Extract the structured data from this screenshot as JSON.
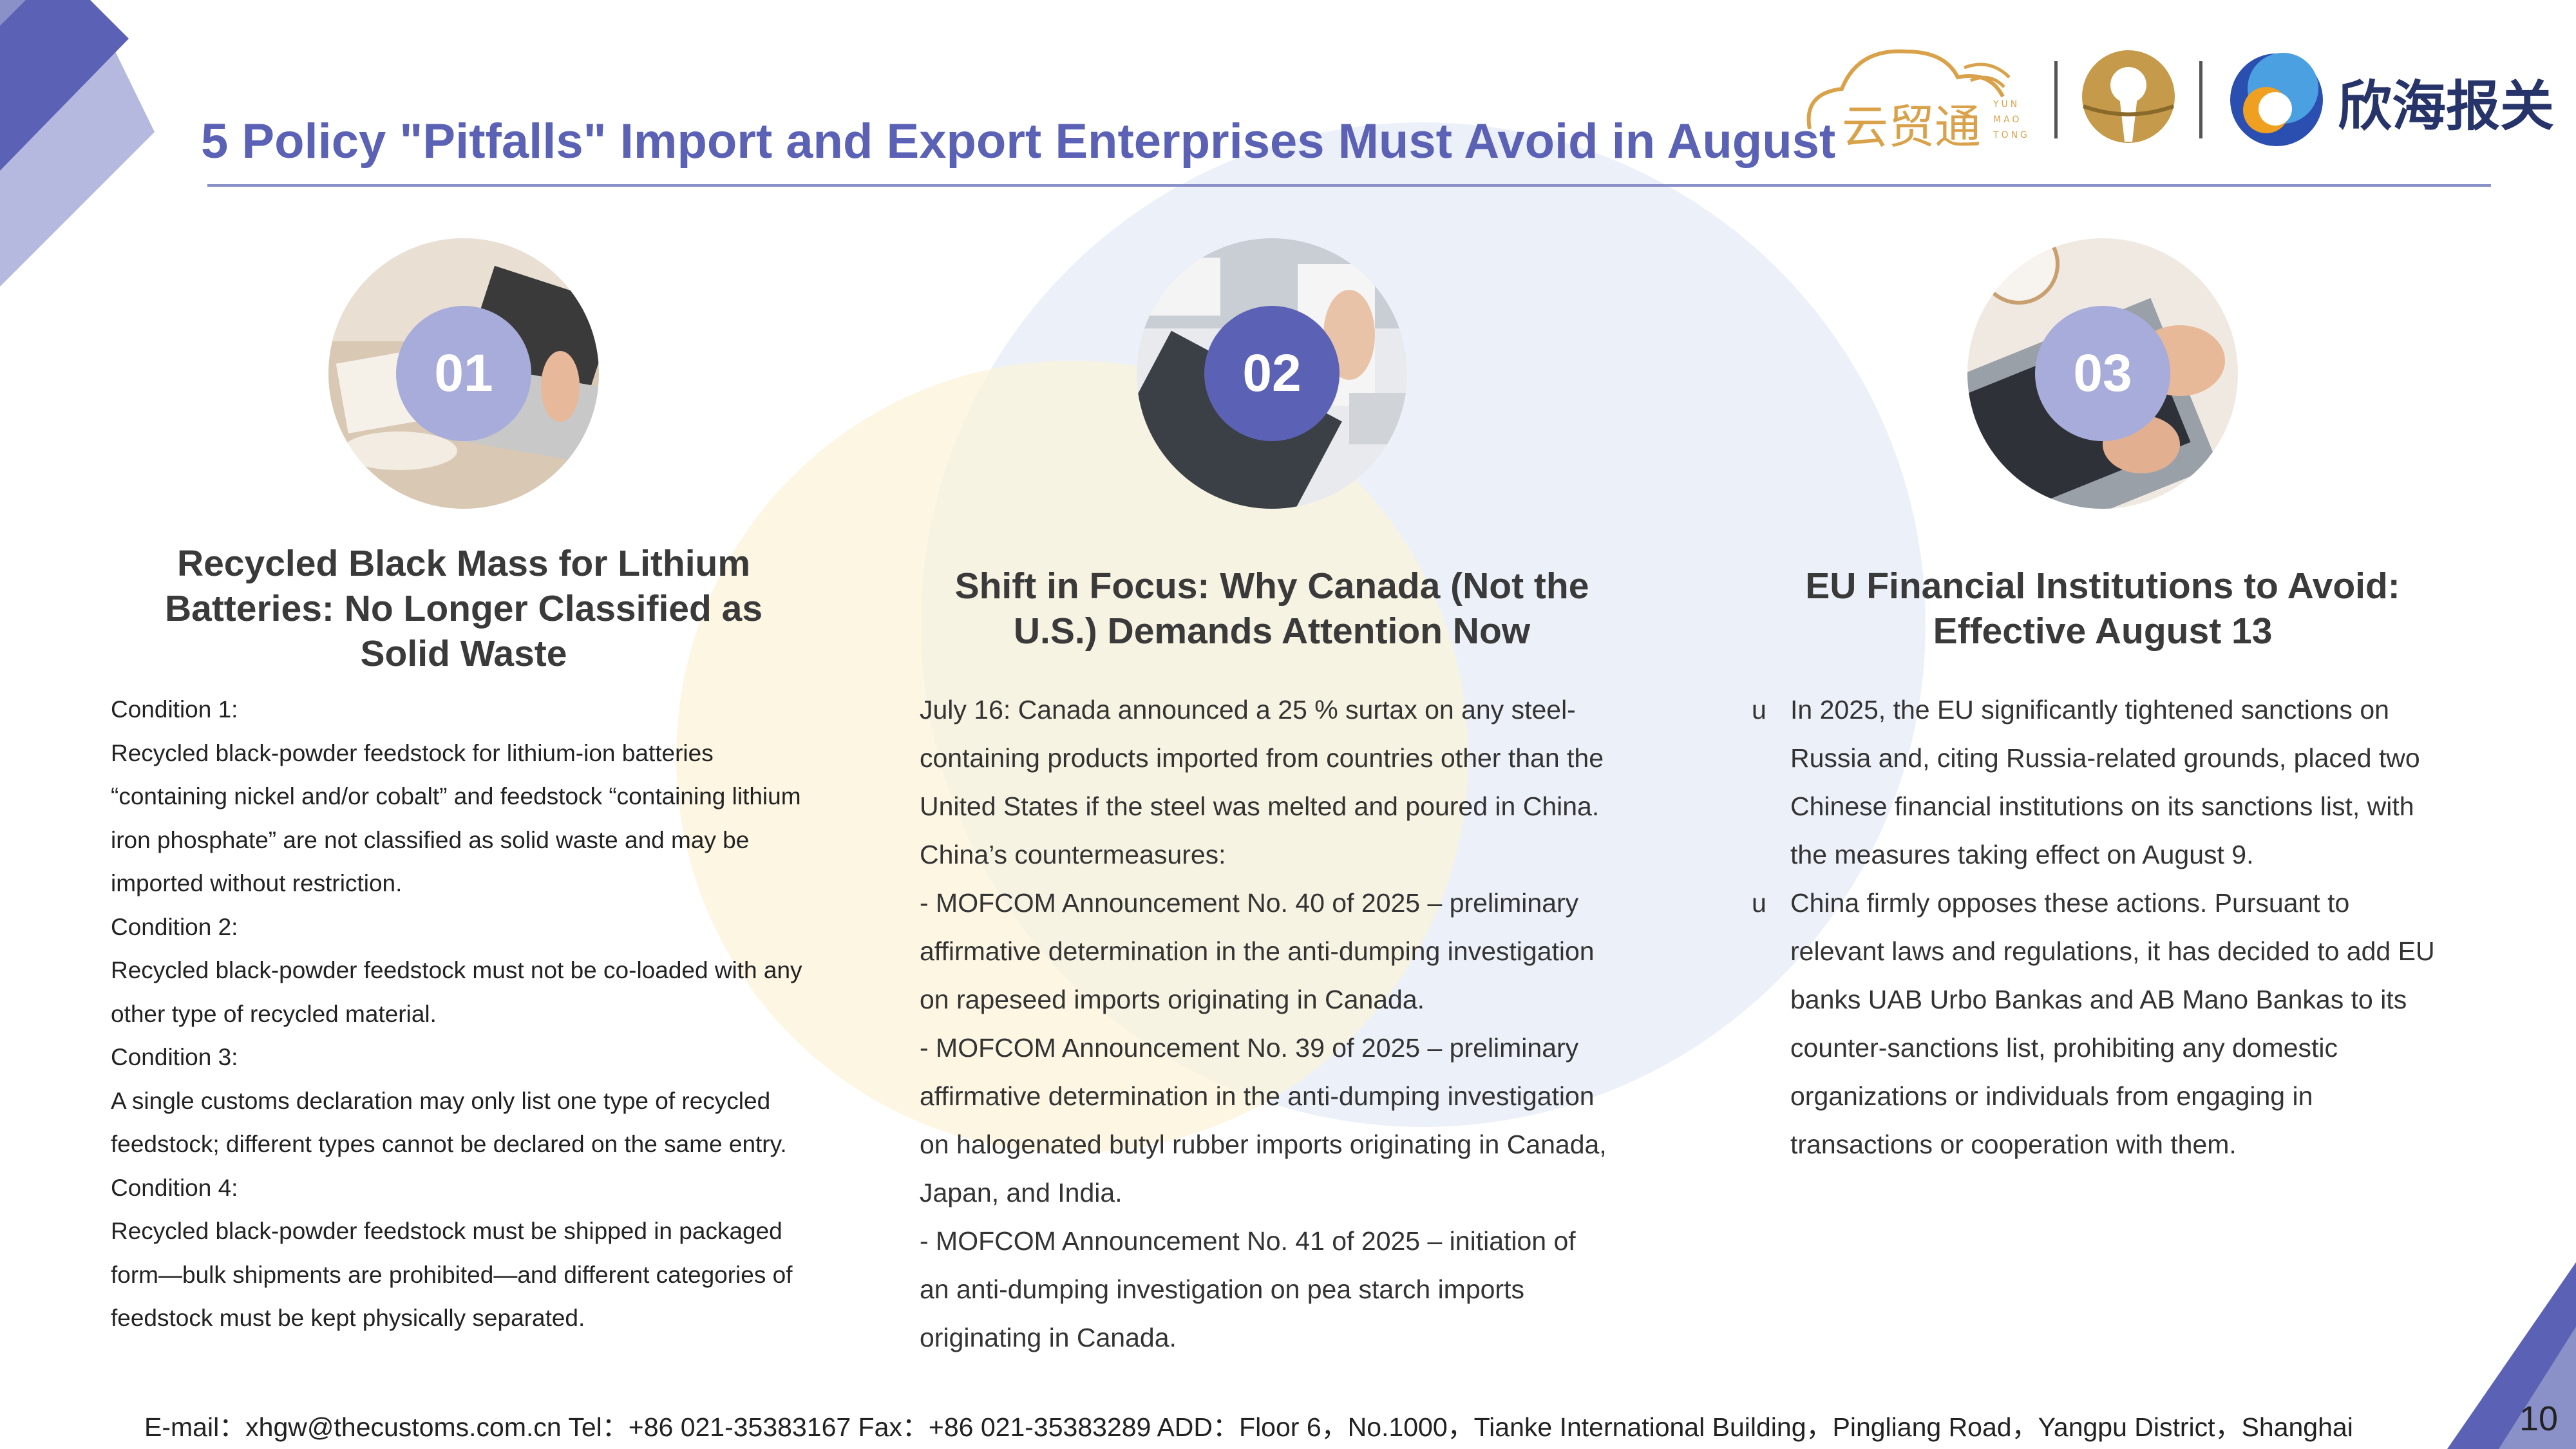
{
  "header": {
    "title": "5 Policy \"Pitfalls\" Import and Export Enterprises Must Avoid in August",
    "logos": {
      "yun_text": "云贸通",
      "yun_small": [
        "YUN",
        "MAO",
        "TONG"
      ],
      "brand_text": "欣海报关"
    }
  },
  "sections": [
    {
      "number": "01",
      "heading": [
        "Recycled Black Mass for Lithium",
        "Batteries: No Longer Classified as",
        "Solid Waste"
      ],
      "lines": [
        "Condition 1:",
        "Recycled black-powder feedstock for lithium-ion batteries",
        "“containing nickel and/or cobalt” and feedstock “containing lithium",
        "iron phosphate” are not classified as solid waste and may be",
        "imported without restriction.",
        "Condition 2:",
        "Recycled black-powder feedstock must not be co-loaded with any",
        "other type of recycled material.",
        "Condition 3:",
        "A single customs declaration may only list one type of recycled",
        "feedstock; different types cannot be declared on the same entry.",
        "Condition 4:",
        "Recycled black-powder feedstock must be shipped in packaged",
        "form—bulk shipments are prohibited—and different categories of",
        "feedstock must be kept physically separated."
      ]
    },
    {
      "number": "02",
      "heading": [
        "Shift in Focus: Why Canada (Not the",
        "U.S.) Demands Attention Now"
      ],
      "lines": [
        "July 16: Canada announced a 25 % surtax on any steel-",
        "containing products imported from countries other than the",
        "United States if the steel was melted and poured in China.",
        "China’s countermeasures:",
        "- MOFCOM Announcement No. 40 of 2025 – preliminary",
        "affirmative determination in the anti-dumping investigation",
        "on rapeseed imports originating in Canada.",
        "- MOFCOM Announcement No. 39 of 2025 – preliminary",
        "affirmative determination in the anti-dumping investigation",
        "on halogenated butyl rubber imports originating in Canada,",
        "Japan, and India.",
        "- MOFCOM Announcement No. 41 of 2025 – initiation of",
        "an anti-dumping investigation on pea starch imports",
        "originating in Canada."
      ]
    },
    {
      "number": "03",
      "heading": [
        "EU Financial Institutions to Avoid:",
        "Effective August 13"
      ],
      "bullet_marker": "u",
      "bullets": [
        [
          "In 2025, the EU significantly tightened sanctions on",
          "Russia and, citing Russia-related grounds, placed two",
          "Chinese financial institutions on its sanctions list, with",
          "the measures taking effect on August 9."
        ],
        [
          "China firmly opposes these actions. Pursuant to",
          "relevant laws and regulations, it has decided to add EU",
          "banks UAB Urbo Bankas and AB Mano Bankas to its",
          "counter-sanctions list, prohibiting any domestic",
          "organizations or individuals from engaging in",
          "transactions or cooperation with them."
        ]
      ]
    }
  ],
  "footer": {
    "contact": "E-mail：xhgw@thecustoms.com.cn  Tel：+86 021-35383167    Fax：+86 021-35383289 ADD：Floor 6，No.1000，Tianke International Building，Pingliang Road，Yangpu District，Shanghai",
    "page_number": "10"
  },
  "colors": {
    "title": "#5b62b5",
    "accent_light": "#a7acda",
    "accent_dark": "#5b62b5",
    "bg_blue": "#e9eef8",
    "bg_yellow": "#fbf3d9",
    "logo_gold": "#d9a24a",
    "brand_navy": "#27346a"
  },
  "icons": [
    "chevron-corner-decoration",
    "cloud-logo-icon",
    "keyhole-logo-icon",
    "crescent-logo-icon"
  ]
}
